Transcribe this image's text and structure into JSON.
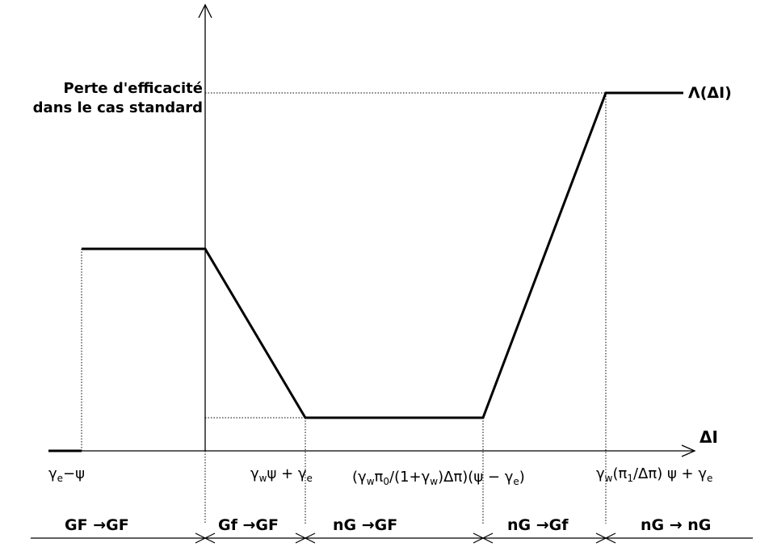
{
  "y_axis_label_line1": "Perte d'efficacité",
  "y_axis_label_line2": "dans le cas standard",
  "x_axis_label": "ΔI",
  "curve_label": "Λ(ΔI)",
  "tick_labels": {
    "t1": {
      "a": "γ",
      "a_sub": "e",
      "b": "−ψ"
    },
    "t2": {
      "a": "γ",
      "a_sub": "w",
      "b": "ψ + γ",
      "b_sub": "e"
    },
    "t3": {
      "a": "(γ",
      "a_sub": "w",
      "b": "π",
      "b_sub": "0",
      "c": "/(1+γ",
      "c_sub": "w",
      "d": ")Δπ)(ψ − γ",
      "d_sub": "e",
      "e": ")"
    },
    "t4": {
      "a": "γ",
      "a_sub": "w",
      "b": "(π",
      "b_sub": "1",
      "c": "/Δπ)  ψ + γ",
      "c_sub": "e"
    }
  },
  "regimes": [
    "GF →GF",
    "Gf →GF",
    "nG →GF",
    "nG →Gf",
    "nG → nG"
  ],
  "colors": {
    "ink": "#000000"
  }
}
